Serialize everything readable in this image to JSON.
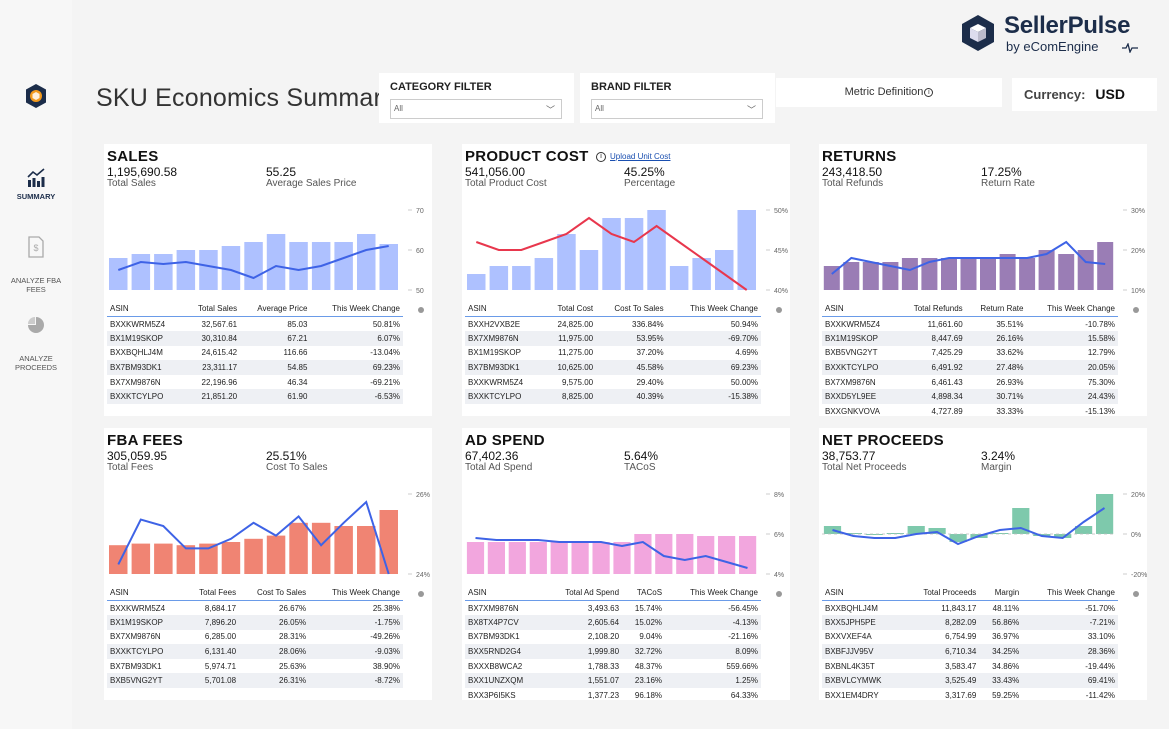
{
  "app": {
    "brand_name": "SellerPulse",
    "brand_sub": "by eComEngine",
    "page_title": "SKU Economics Summary"
  },
  "nav": [
    {
      "label": "SUMMARY",
      "icon": "chart-icon"
    },
    {
      "label": "ANALYZE FBA FEES",
      "icon": "document-dollar-icon"
    },
    {
      "label": "ANALYZE PROCEEDS",
      "icon": "pie-icon"
    }
  ],
  "filters": {
    "category": {
      "title": "CATEGORY FILTER",
      "value": "All"
    },
    "brand": {
      "title": "BRAND FILTER",
      "value": "All"
    }
  },
  "metric_definition": "Metric Definition",
  "currency": {
    "label": "Currency:",
    "value": "USD"
  },
  "colors": {
    "blue_bar": "#aec1ff",
    "blue_line": "#3e63e6",
    "purple_bar": "#9a7db5",
    "red_bar": "#f08473",
    "pink_bar": "#f2a6de",
    "green_bar": "#7ec9ac",
    "red_line": "#e8374d"
  },
  "cards": {
    "sales": {
      "title": "SALES",
      "m1_value": "1,195,690.58",
      "m1_label": "Total Sales",
      "m2_value": "55.25",
      "m2_label": "Average Sales Price",
      "headers": [
        "ASIN",
        "Total Sales",
        "Average Price",
        "This Week Change"
      ],
      "rows": [
        [
          "BXXKWRM5Z4",
          "32,567.61",
          "85.03",
          "50.81%"
        ],
        [
          "BX1M19SKOP",
          "30,310.84",
          "67.21",
          "6.07%"
        ],
        [
          "BXXBQHLJ4M",
          "24,615.42",
          "116.66",
          "-13.04%"
        ],
        [
          "BX7BM93DK1",
          "23,311.17",
          "54.85",
          "69.23%"
        ],
        [
          "BX7XM9876N",
          "22,196.96",
          "46.34",
          "-69.21%"
        ],
        [
          "BXXKTCYLPO",
          "21,851.20",
          "61.90",
          "-6.53%"
        ]
      ]
    },
    "cost": {
      "title": "PRODUCT COST",
      "upload": "Upload Unit Cost",
      "m1_value": "541,056.00",
      "m1_label": "Total Product Cost",
      "m2_value": "45.25%",
      "m2_label": "Percentage",
      "headers": [
        "ASIN",
        "Total Cost",
        "Cost To Sales",
        "This Week Change"
      ],
      "rows": [
        [
          "BXXH2VXB2E",
          "24,825.00",
          "336.84%",
          "50.94%"
        ],
        [
          "BX7XM9876N",
          "11,975.00",
          "53.95%",
          "-69.70%"
        ],
        [
          "BX1M19SKOP",
          "11,275.00",
          "37.20%",
          "4.69%"
        ],
        [
          "BX7BM93DK1",
          "10,625.00",
          "45.58%",
          "69.23%"
        ],
        [
          "BXXKWRM5Z4",
          "9,575.00",
          "29.40%",
          "50.00%"
        ],
        [
          "BXXKTCYLPO",
          "8,825.00",
          "40.39%",
          "-15.38%"
        ]
      ]
    },
    "returns": {
      "title": "RETURNS",
      "m1_value": "243,418.50",
      "m1_label": "Total Refunds",
      "m2_value": "17.25%",
      "m2_label": "Return Rate",
      "headers": [
        "ASIN",
        "Total Refunds",
        "Return Rate",
        "This Week Change"
      ],
      "rows": [
        [
          "BXXKWRM5Z4",
          "11,661.60",
          "35.51%",
          "-10.78%"
        ],
        [
          "BX1M19SKOP",
          "8,447.69",
          "26.16%",
          "15.58%"
        ],
        [
          "BXB5VNG2YT",
          "7,425.29",
          "33.62%",
          "12.79%"
        ],
        [
          "BXXKTCYLPO",
          "6,491.92",
          "27.48%",
          "20.05%"
        ],
        [
          "BX7XM9876N",
          "6,461.43",
          "26.93%",
          "75.30%"
        ],
        [
          "BXXD5YL9EE",
          "4,898.34",
          "30.71%",
          "24.43%"
        ],
        [
          "BXXGNKVOVA",
          "4,727.89",
          "33.33%",
          "-15.13%"
        ]
      ]
    },
    "fba": {
      "title": "FBA FEES",
      "m1_value": "305,059.95",
      "m1_label": "Total Fees",
      "m2_value": "25.51%",
      "m2_label": "Cost To Sales",
      "headers": [
        "ASIN",
        "Total Fees",
        "Cost To Sales",
        "This Week Change"
      ],
      "rows": [
        [
          "BXXKWRM5Z4",
          "8,684.17",
          "26.67%",
          "25.38%"
        ],
        [
          "BX1M19SKOP",
          "7,896.20",
          "26.05%",
          "-1.75%"
        ],
        [
          "BX7XM9876N",
          "6,285.00",
          "28.31%",
          "-49.26%"
        ],
        [
          "BXXKTCYLPO",
          "6,131.40",
          "28.06%",
          "-9.03%"
        ],
        [
          "BX7BM93DK1",
          "5,974.71",
          "25.63%",
          "38.90%"
        ],
        [
          "BXB5VNG2YT",
          "5,701.08",
          "26.31%",
          "-8.72%"
        ]
      ]
    },
    "ad": {
      "title": "AD SPEND",
      "m1_value": "67,402.36",
      "m1_label": "Total Ad Spend",
      "m2_value": "5.64%",
      "m2_label": "TACoS",
      "headers": [
        "ASIN",
        "Total Ad Spend",
        "TACoS",
        "This Week Change"
      ],
      "rows": [
        [
          "BX7XM9876N",
          "3,493.63",
          "15.74%",
          "-56.45%"
        ],
        [
          "BX8TX4P7CV",
          "2,605.64",
          "15.02%",
          "-4.13%"
        ],
        [
          "BX7BM93DK1",
          "2,108.20",
          "9.04%",
          "-21.16%"
        ],
        [
          "BXX5RND2G4",
          "1,999.80",
          "32.72%",
          "8.09%"
        ],
        [
          "BXXXB8WCA2",
          "1,788.33",
          "48.37%",
          "559.66%"
        ],
        [
          "BXX1UNZXQM",
          "1,551.07",
          "23.16%",
          "1.25%"
        ],
        [
          "BXX3P6I5KS",
          "1,377.23",
          "96.18%",
          "64.33%"
        ]
      ]
    },
    "proceeds": {
      "title": "NET PROCEEDS",
      "m1_value": "38,753.77",
      "m1_label": "Total Net Proceeds",
      "m2_value": "3.24%",
      "m2_label": "Margin",
      "headers": [
        "ASIN",
        "Total Proceeds",
        "Margin",
        "This Week Change"
      ],
      "rows": [
        [
          "BXXBQHLJ4M",
          "11,843.17",
          "48.11%",
          "-51.70%"
        ],
        [
          "BXX5JPH5PE",
          "8,282.09",
          "56.86%",
          "-7.21%"
        ],
        [
          "BXXVXEF4A",
          "6,754.99",
          "36.97%",
          "33.10%"
        ],
        [
          "BXBFJJV95V",
          "6,710.34",
          "34.25%",
          "28.36%"
        ],
        [
          "BXBNL4K35T",
          "3,583.47",
          "34.86%",
          "-19.44%"
        ],
        [
          "BXBVLCYMWK",
          "3,525.49",
          "33.43%",
          "69.41%"
        ],
        [
          "BXX1EM4DRY",
          "3,317.69",
          "59.25%",
          "-11.42%"
        ]
      ]
    }
  },
  "chart_data": [
    {
      "type": "bar+line",
      "title": "SALES",
      "bars": [
        58,
        59,
        59,
        60,
        60,
        61,
        62,
        64,
        62,
        62,
        62,
        64,
        61.5
      ],
      "line": [
        55,
        57,
        56.5,
        57,
        56,
        55,
        53,
        56,
        55,
        56,
        58,
        60,
        61
      ],
      "y_ticks": [
        "70",
        "60",
        "50"
      ],
      "ylim": [
        50,
        70
      ]
    },
    {
      "type": "bar+line",
      "title": "PRODUCT COST",
      "bars": [
        42,
        43,
        43,
        44,
        47,
        45,
        49,
        49,
        50,
        43,
        44,
        45,
        50
      ],
      "line": [
        46,
        45,
        45,
        46,
        47,
        49,
        47,
        46,
        48,
        46,
        44,
        42,
        40
      ],
      "y_ticks": [
        "50%",
        "45%",
        "40%"
      ],
      "ylim": [
        40,
        50
      ]
    },
    {
      "type": "bar+line",
      "title": "RETURNS",
      "bars": [
        16,
        17,
        17,
        17,
        18,
        18,
        18,
        18,
        18,
        19,
        18,
        20,
        19,
        20,
        22
      ],
      "line": [
        14,
        18,
        17,
        16,
        15,
        17,
        18,
        18,
        18,
        18,
        18,
        19,
        22,
        17,
        16.5
      ],
      "y_ticks": [
        "30%",
        "20%",
        "10%"
      ],
      "ylim": [
        10,
        30
      ]
    },
    {
      "type": "bar+line",
      "title": "FBA FEES",
      "bars": [
        24.9,
        24.95,
        24.95,
        24.9,
        24.95,
        25.0,
        25.1,
        25.2,
        25.6,
        25.6,
        25.5,
        25.5,
        26.0
      ],
      "line": [
        24.3,
        25.7,
        25.5,
        24.8,
        24.8,
        25.1,
        25.6,
        25.2,
        25.8,
        24.9,
        25.6,
        26.25,
        24.0
      ],
      "y_ticks": [
        "26%",
        "24%"
      ],
      "ylim": [
        24,
        26.5
      ]
    },
    {
      "type": "bar+line",
      "title": "AD SPEND",
      "bars": [
        5.6,
        5.6,
        5.6,
        5.6,
        5.6,
        5.6,
        5.6,
        5.6,
        6.0,
        6.0,
        6.0,
        5.9,
        5.9,
        5.9
      ],
      "line": [
        5.8,
        5.7,
        5.7,
        5.7,
        5.6,
        5.6,
        5.6,
        5.4,
        5.6,
        4.9,
        4.7,
        4.9,
        4.6,
        4.3
      ],
      "y_ticks": [
        "8%",
        "6%",
        "4%"
      ],
      "ylim": [
        4,
        8
      ]
    },
    {
      "type": "bar+line",
      "title": "NET PROCEEDS",
      "bars": [
        4,
        0.5,
        -0.5,
        0.5,
        4,
        3,
        -4,
        -2,
        0.5,
        13,
        -1,
        -2,
        4,
        20
      ],
      "line": [
        2,
        -1,
        -2,
        -2,
        0,
        1,
        -5,
        -1,
        2,
        3,
        -1,
        -2,
        6,
        13
      ],
      "y_ticks": [
        "20%",
        "0%",
        "-20%"
      ],
      "ylim": [
        -20,
        20
      ]
    }
  ]
}
